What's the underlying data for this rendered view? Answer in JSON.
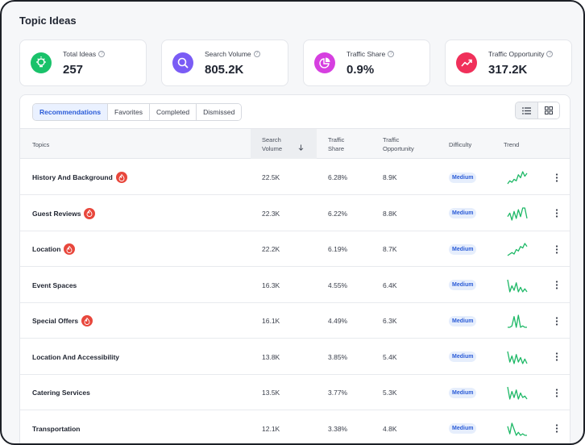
{
  "page_title": "Topic Ideas",
  "colors": {
    "accent": "#2a5bd7",
    "trend": "#1db866",
    "hot": "#e8473c"
  },
  "stats": [
    {
      "label": "Total Ideas",
      "value": "257",
      "icon": "lightbulb-icon",
      "color": "#19c26a"
    },
    {
      "label": "Search Volume",
      "value": "805.2K",
      "icon": "search-icon",
      "color": "#7a5cf5"
    },
    {
      "label": "Traffic Share",
      "value": "0.9%",
      "icon": "pie-chart-icon",
      "color": "#d63fe0"
    },
    {
      "label": "Traffic Opportunity",
      "value": "317.2K",
      "icon": "trending-up-icon",
      "color": "#f0305a"
    }
  ],
  "tabs": [
    {
      "label": "Recommendations",
      "active": true
    },
    {
      "label": "Favorites",
      "active": false
    },
    {
      "label": "Completed",
      "active": false
    },
    {
      "label": "Dismissed",
      "active": false
    }
  ],
  "columns": {
    "topics": "Topics",
    "search_volume_1": "Search",
    "search_volume_2": "Volume",
    "traffic_share_1": "Traffic",
    "traffic_share_2": "Share",
    "traffic_opp_1": "Traffic",
    "traffic_opp_2": "Opportunity",
    "difficulty": "Difficulty",
    "trend": "Trend"
  },
  "rows": [
    {
      "topic": "History And Background",
      "hot": true,
      "volume": "22.5K",
      "share": "6.28%",
      "opportunity": "8.9K",
      "difficulty": "Medium",
      "trend": [
        2,
        4,
        3,
        5,
        4,
        8,
        6,
        10,
        7,
        9
      ]
    },
    {
      "topic": "Guest Reviews",
      "hot": true,
      "volume": "22.3K",
      "share": "6.22%",
      "opportunity": "8.8K",
      "difficulty": "Medium",
      "trend": [
        5,
        7,
        3,
        8,
        4,
        9,
        5,
        10,
        10,
        4
      ]
    },
    {
      "topic": "Location",
      "hot": true,
      "volume": "22.2K",
      "share": "6.19%",
      "opportunity": "8.7K",
      "difficulty": "Medium",
      "trend": [
        2,
        3,
        4,
        3,
        6,
        5,
        8,
        7,
        10,
        8
      ]
    },
    {
      "topic": "Event Spaces",
      "hot": false,
      "volume": "16.3K",
      "share": "4.55%",
      "opportunity": "6.4K",
      "difficulty": "Medium",
      "trend": [
        10,
        2,
        6,
        3,
        8,
        2,
        5,
        2,
        4,
        2
      ]
    },
    {
      "topic": "Special Offers",
      "hot": true,
      "volume": "16.1K",
      "share": "4.49%",
      "opportunity": "6.3K",
      "difficulty": "Medium",
      "trend": [
        1,
        1,
        2,
        9,
        1,
        10,
        1,
        2,
        1,
        1
      ]
    },
    {
      "topic": "Location And Accessibility",
      "hot": false,
      "volume": "13.8K",
      "share": "3.85%",
      "opportunity": "5.4K",
      "difficulty": "Medium",
      "trend": [
        10,
        3,
        7,
        2,
        8,
        3,
        6,
        2,
        5,
        2
      ]
    },
    {
      "topic": "Catering Services",
      "hot": false,
      "volume": "13.5K",
      "share": "3.77%",
      "opportunity": "5.3K",
      "difficulty": "Medium",
      "trend": [
        10,
        2,
        7,
        3,
        8,
        2,
        6,
        3,
        4,
        2
      ]
    },
    {
      "topic": "Transportation",
      "hot": false,
      "volume": "12.1K",
      "share": "3.38%",
      "opportunity": "4.8K",
      "difficulty": "Medium",
      "trend": [
        8,
        3,
        10,
        6,
        2,
        4,
        2,
        3,
        2,
        2
      ]
    }
  ]
}
